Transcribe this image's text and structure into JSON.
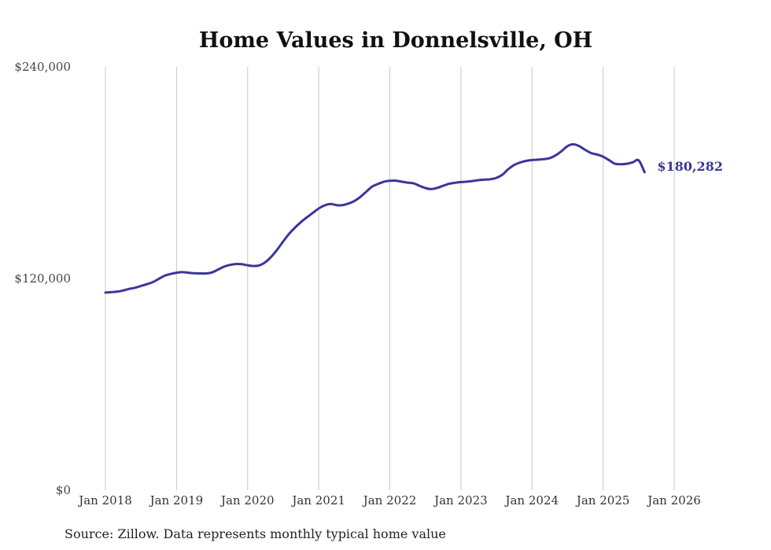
{
  "chart_data": {
    "type": "line",
    "title": "Home Values in Donnelsville, OH",
    "xlabel": "",
    "ylabel": "",
    "ylim": [
      0,
      240000
    ],
    "y_ticks": [
      {
        "value": 0,
        "label": "$0"
      },
      {
        "value": 120000,
        "label": "$120,000"
      },
      {
        "value": 240000,
        "label": "$240,000"
      }
    ],
    "x_ticks": [
      {
        "value": "2018-01",
        "label": "Jan 2018"
      },
      {
        "value": "2019-01",
        "label": "Jan 2019"
      },
      {
        "value": "2020-01",
        "label": "Jan 2020"
      },
      {
        "value": "2021-01",
        "label": "Jan 2021"
      },
      {
        "value": "2022-01",
        "label": "Jan 2022"
      },
      {
        "value": "2023-01",
        "label": "Jan 2023"
      },
      {
        "value": "2024-01",
        "label": "Jan 2024"
      },
      {
        "value": "2025-01",
        "label": "Jan 2025"
      },
      {
        "value": "2026-01",
        "label": "Jan 2026"
      }
    ],
    "grid": "vertical",
    "series": [
      {
        "color": "#3b3699",
        "points": [
          [
            "2018-01",
            112000
          ],
          [
            "2018-02",
            112300
          ],
          [
            "2018-03",
            112600
          ],
          [
            "2018-04",
            113200
          ],
          [
            "2018-05",
            114100
          ],
          [
            "2018-06",
            114800
          ],
          [
            "2018-07",
            115800
          ],
          [
            "2018-08",
            116800
          ],
          [
            "2018-09",
            118000
          ],
          [
            "2018-10",
            119800
          ],
          [
            "2018-11",
            121600
          ],
          [
            "2018-12",
            122600
          ],
          [
            "2019-01",
            123300
          ],
          [
            "2019-02",
            123600
          ],
          [
            "2019-03",
            123300
          ],
          [
            "2019-04",
            123000
          ],
          [
            "2019-05",
            122900
          ],
          [
            "2019-06",
            122900
          ],
          [
            "2019-07",
            123500
          ],
          [
            "2019-08",
            125100
          ],
          [
            "2019-09",
            126700
          ],
          [
            "2019-10",
            127700
          ],
          [
            "2019-11",
            128200
          ],
          [
            "2019-12",
            128100
          ],
          [
            "2020-01",
            127500
          ],
          [
            "2020-02",
            127100
          ],
          [
            "2020-03",
            127500
          ],
          [
            "2020-04",
            129300
          ],
          [
            "2020-05",
            132400
          ],
          [
            "2020-06",
            136400
          ],
          [
            "2020-07",
            141000
          ],
          [
            "2020-08",
            145400
          ],
          [
            "2020-09",
            148900
          ],
          [
            "2020-10",
            152000
          ],
          [
            "2020-11",
            154700
          ],
          [
            "2020-12",
            157200
          ],
          [
            "2021-01",
            159700
          ],
          [
            "2021-02",
            161500
          ],
          [
            "2021-03",
            162300
          ],
          [
            "2021-04",
            161600
          ],
          [
            "2021-05",
            161600
          ],
          [
            "2021-06",
            162500
          ],
          [
            "2021-07",
            163900
          ],
          [
            "2021-08",
            166200
          ],
          [
            "2021-09",
            169200
          ],
          [
            "2021-10",
            172100
          ],
          [
            "2021-11",
            173600
          ],
          [
            "2021-12",
            174900
          ],
          [
            "2022-01",
            175400
          ],
          [
            "2022-02",
            175500
          ],
          [
            "2022-03",
            174900
          ],
          [
            "2022-04",
            174400
          ],
          [
            "2022-05",
            174000
          ],
          [
            "2022-06",
            172600
          ],
          [
            "2022-07",
            171300
          ],
          [
            "2022-08",
            170700
          ],
          [
            "2022-09",
            171400
          ],
          [
            "2022-10",
            172600
          ],
          [
            "2022-11",
            173700
          ],
          [
            "2022-12",
            174300
          ],
          [
            "2023-01",
            174700
          ],
          [
            "2023-02",
            174900
          ],
          [
            "2023-03",
            175300
          ],
          [
            "2023-04",
            175800
          ],
          [
            "2023-05",
            176100
          ],
          [
            "2023-06",
            176300
          ],
          [
            "2023-07",
            177100
          ],
          [
            "2023-08",
            178900
          ],
          [
            "2023-09",
            182000
          ],
          [
            "2023-10",
            184400
          ],
          [
            "2023-11",
            185800
          ],
          [
            "2023-12",
            186700
          ],
          [
            "2024-01",
            187200
          ],
          [
            "2024-02",
            187400
          ],
          [
            "2024-03",
            187700
          ],
          [
            "2024-04",
            188300
          ],
          [
            "2024-05",
            189900
          ],
          [
            "2024-06",
            192300
          ],
          [
            "2024-07",
            195100
          ],
          [
            "2024-08",
            196100
          ],
          [
            "2024-09",
            195000
          ],
          [
            "2024-10",
            192900
          ],
          [
            "2024-11",
            191100
          ],
          [
            "2024-12",
            190300
          ],
          [
            "2025-01",
            189100
          ],
          [
            "2025-02",
            187100
          ],
          [
            "2025-03",
            185100
          ],
          [
            "2025-04",
            184800
          ],
          [
            "2025-05",
            185100
          ],
          [
            "2025-06",
            185900
          ],
          [
            "2025-07",
            187000
          ],
          [
            "2025-08",
            180282
          ]
        ]
      }
    ],
    "end_label": "$180,282",
    "source_note": "Source: Zillow. Data represents monthly typical home value"
  }
}
